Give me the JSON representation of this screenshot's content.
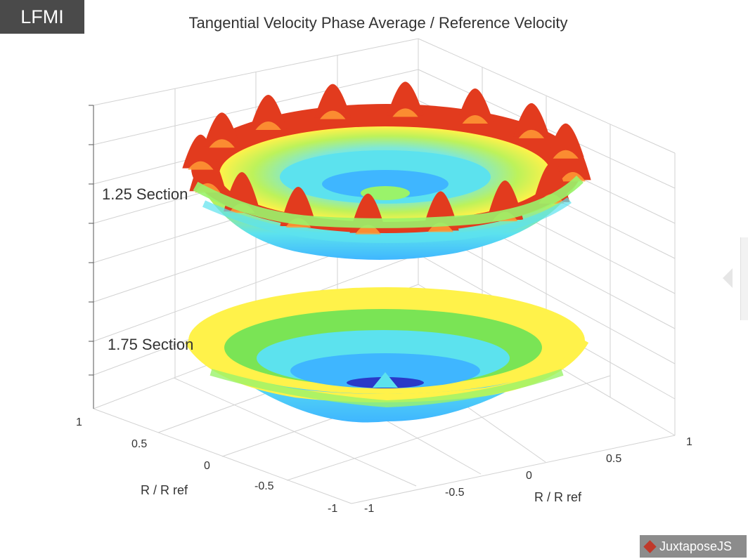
{
  "overlay": {
    "badge": "LFMI",
    "juxtapose_label": "JuxtaposeJS",
    "accent": "#c0392b"
  },
  "chart_data": {
    "type": "surface3d",
    "title": "Tangential Velocity Phase Average / Reference Velocity",
    "x_axis": {
      "label": "R / R ref",
      "ticks": [
        "1",
        "0.5",
        "0",
        "-0.5",
        "-1"
      ]
    },
    "y_axis": {
      "label": "R / R ref",
      "ticks": [
        "-1",
        "-0.5",
        "0",
        "0.5",
        "1"
      ]
    },
    "xlim": [
      -1,
      1
    ],
    "ylim": [
      -1,
      1
    ],
    "grid": true,
    "colormap": [
      "#2a39c8",
      "#3fb6ff",
      "#5ce2ee",
      "#9af36a",
      "#fff24a",
      "#ff9b35",
      "#e23b1e"
    ],
    "surfaces": [
      {
        "label": "1.25 Section",
        "peaks": 16
      },
      {
        "label": "1.75 Section",
        "peaks": 0
      }
    ]
  }
}
